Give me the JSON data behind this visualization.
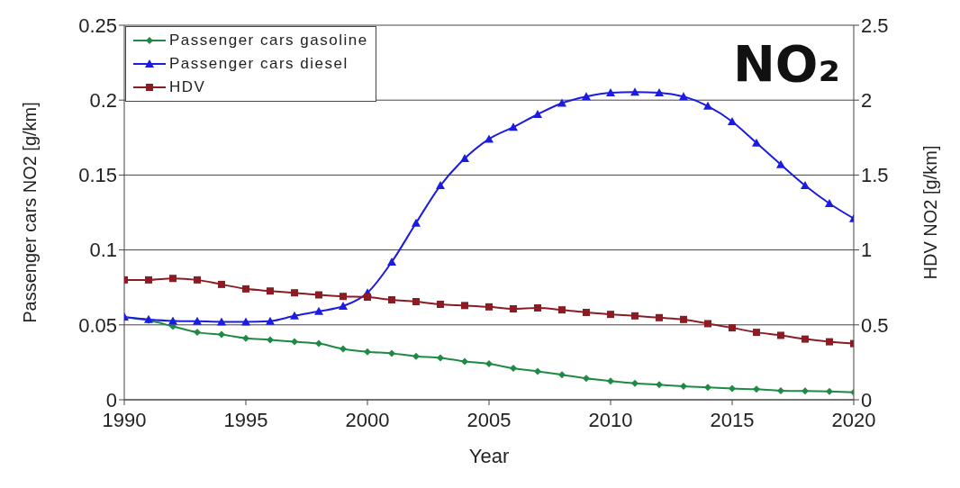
{
  "chart_data": {
    "type": "line",
    "title": "NO₂",
    "xlabel": "Year",
    "ylabel": "Passenger cars NO2 [g/km]",
    "y2label": "HDV NO2 [g/km]",
    "x": [
      1990,
      1991,
      1992,
      1993,
      1994,
      1995,
      1996,
      1997,
      1998,
      1999,
      2000,
      2001,
      2002,
      2003,
      2004,
      2005,
      2006,
      2007,
      2008,
      2009,
      2010,
      2011,
      2012,
      2013,
      2014,
      2015,
      2016,
      2017,
      2018,
      2019,
      2020
    ],
    "series": [
      {
        "name": "Passenger cars gasoline",
        "color": "#1f8a45",
        "marker": "diamond",
        "values": [
          0.055,
          0.053,
          0.049,
          0.045,
          0.0435,
          0.041,
          0.04,
          0.0387,
          0.0375,
          0.034,
          0.032,
          0.031,
          0.029,
          0.028,
          0.0256,
          0.024,
          0.021,
          0.019,
          0.0167,
          0.0143,
          0.0125,
          0.011,
          0.01,
          0.009,
          0.0083,
          0.0075,
          0.007,
          0.006,
          0.0058,
          0.0055,
          0.005
        ]
      },
      {
        "name": "Passenger cars diesel",
        "color": "#1c1ce0",
        "marker": "triangle",
        "values": [
          0.0553,
          0.0536,
          0.0526,
          0.0524,
          0.052,
          0.052,
          0.0525,
          0.056,
          0.059,
          0.0625,
          0.0714,
          0.092,
          0.118,
          0.143,
          0.161,
          0.174,
          0.182,
          0.1905,
          0.198,
          0.2024,
          0.205,
          0.2054,
          0.205,
          0.2024,
          0.196,
          0.1857,
          0.1714,
          0.157,
          0.143,
          0.131,
          0.121
        ]
      },
      {
        "name": "HDV",
        "color": "#8b1c24",
        "marker": "square",
        "axis": "y2",
        "values": [
          0.8,
          0.8,
          0.81,
          0.8,
          0.77,
          0.74,
          0.726,
          0.714,
          0.7,
          0.69,
          0.685,
          0.667,
          0.655,
          0.637,
          0.629,
          0.62,
          0.607,
          0.613,
          0.6,
          0.583,
          0.57,
          0.56,
          0.548,
          0.536,
          0.508,
          0.48,
          0.45,
          0.43,
          0.405,
          0.387,
          0.375
        ]
      }
    ],
    "xlim": [
      1990,
      2020
    ],
    "xticks": [
      1990,
      1995,
      2000,
      2005,
      2010,
      2015,
      2020
    ],
    "ylim": [
      0,
      0.25
    ],
    "yticks": [
      0,
      0.05,
      0.1,
      0.15,
      0.2,
      0.25
    ],
    "y2lim": [
      0,
      2.5
    ],
    "y2ticks": [
      0,
      0.5,
      1,
      1.5,
      2,
      2.5
    ],
    "grid": "y",
    "legend": "top left",
    "line_style": "solid"
  }
}
